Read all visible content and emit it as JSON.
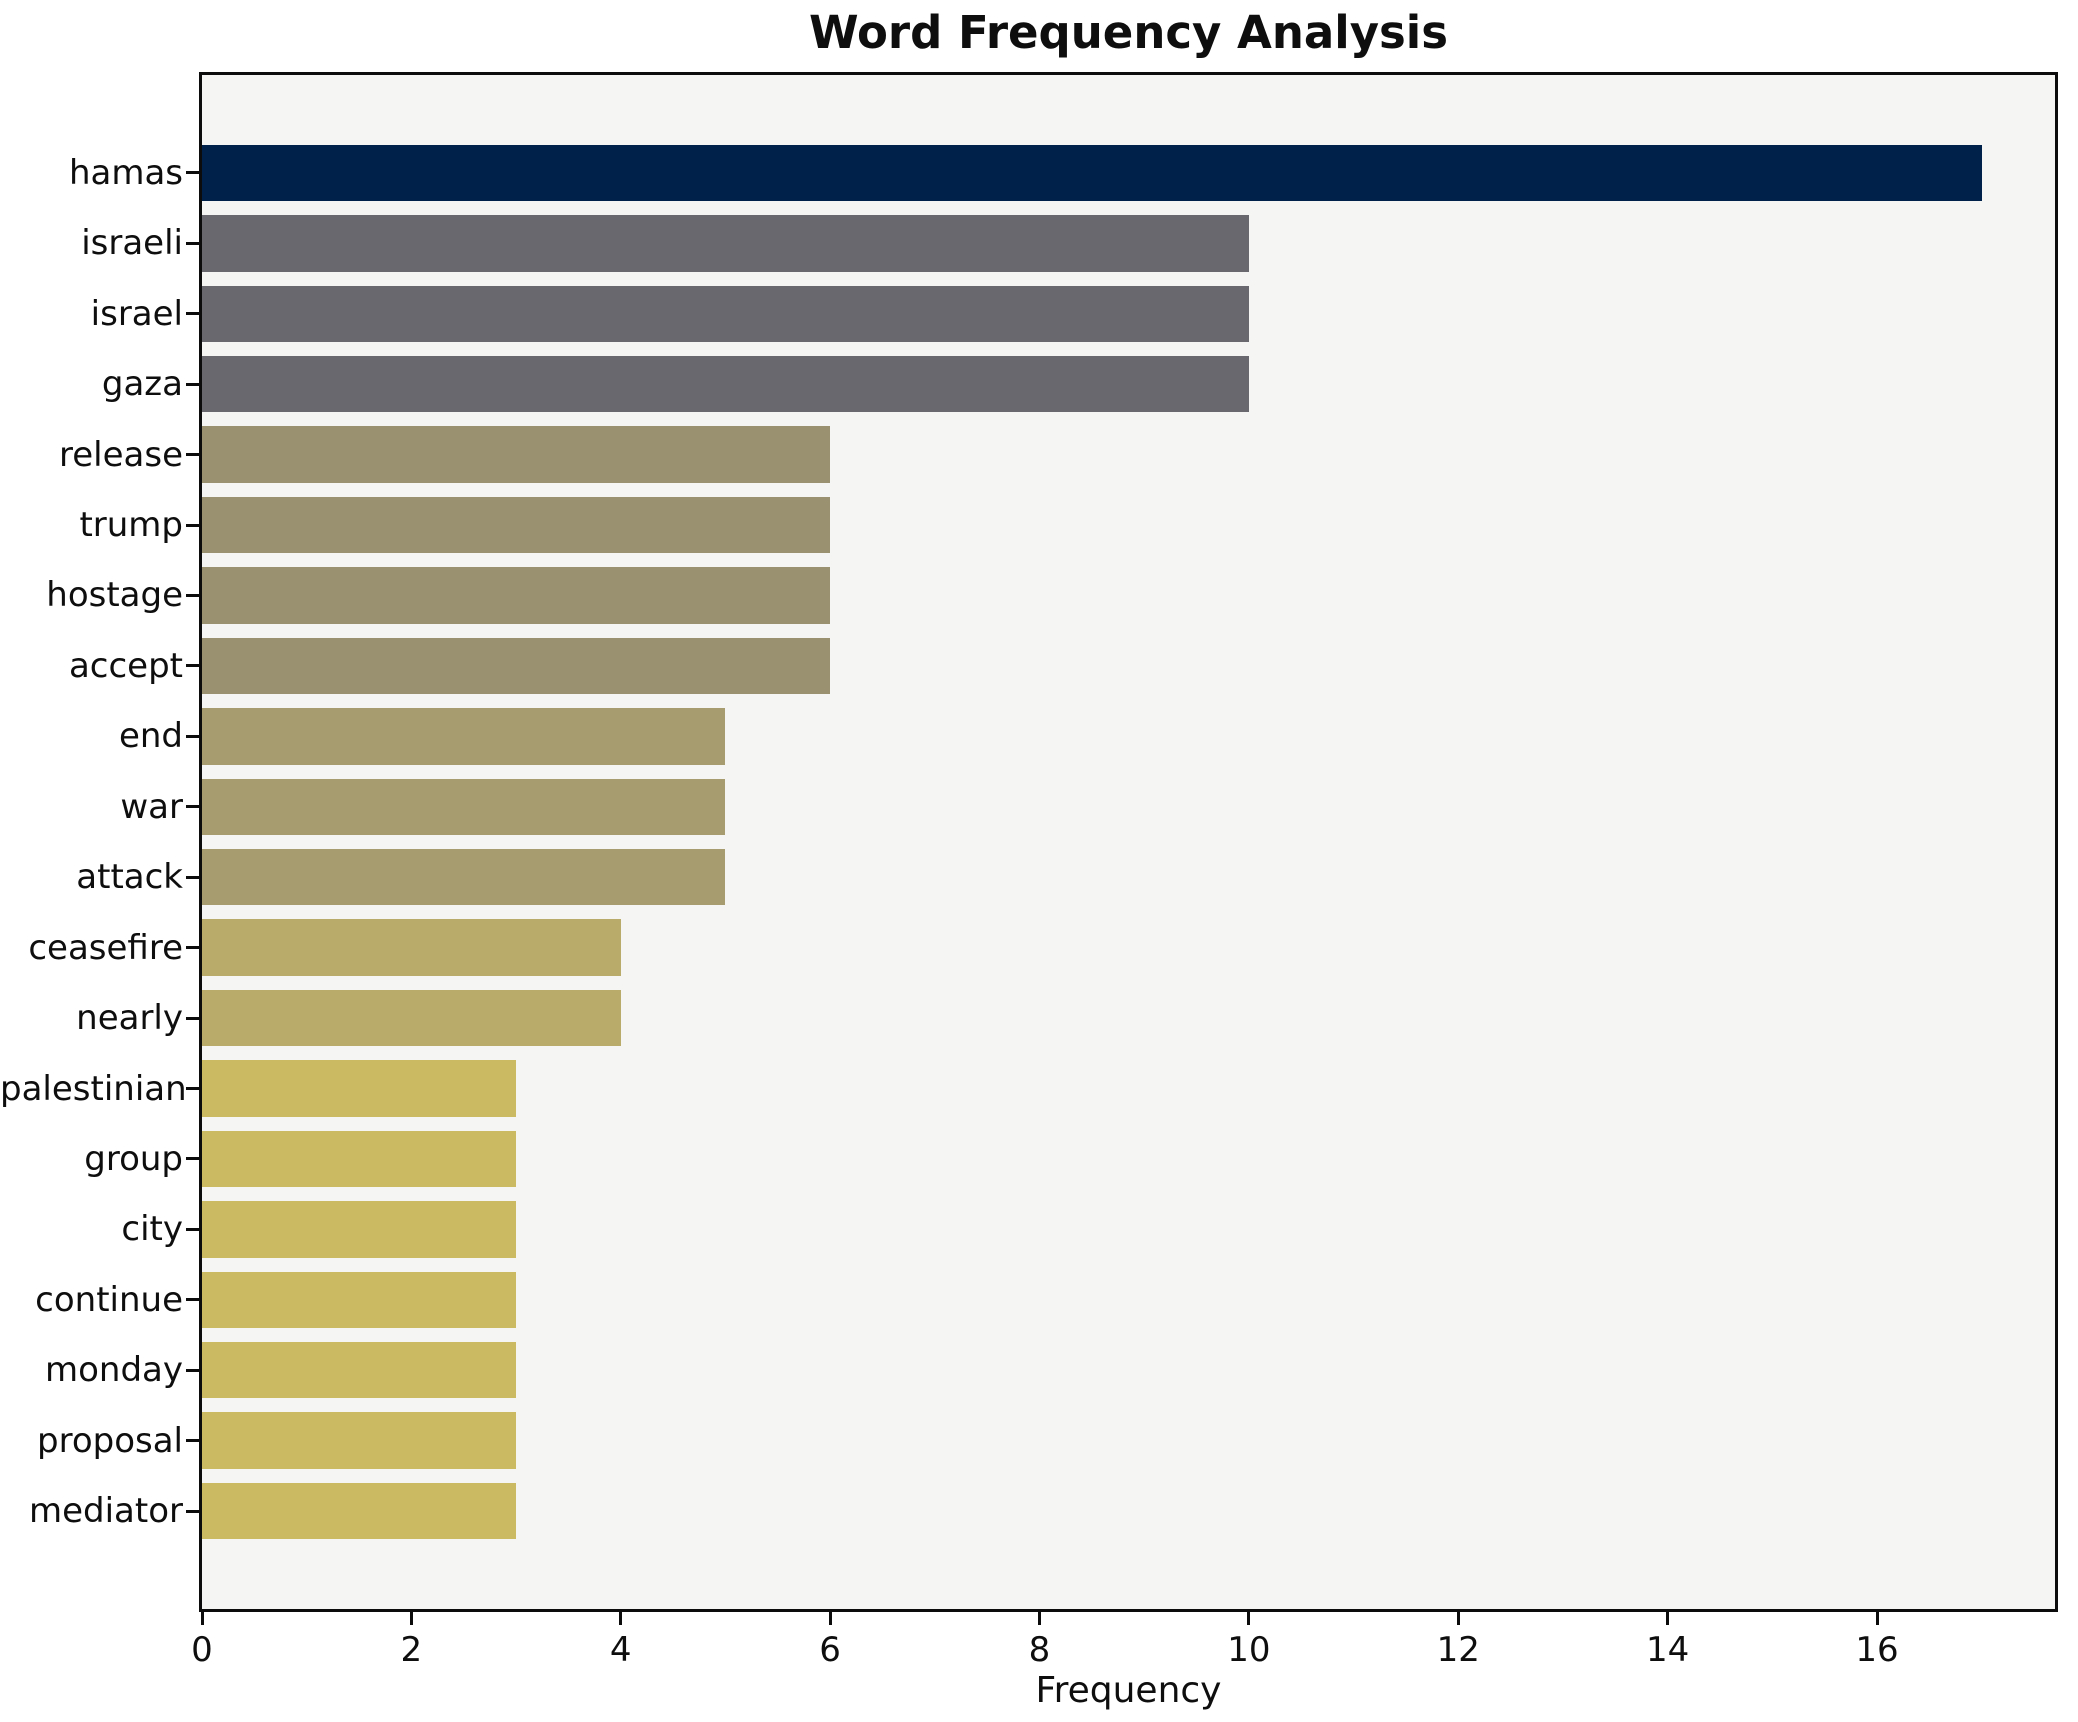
{
  "title": "Word Frequency Analysis",
  "chart_data": {
    "type": "bar",
    "orientation": "horizontal",
    "title": "Word Frequency Analysis",
    "xlabel": "Frequency",
    "ylabel": "",
    "categories": [
      "hamas",
      "israeli",
      "israel",
      "gaza",
      "release",
      "trump",
      "hostage",
      "accept",
      "end",
      "war",
      "attack",
      "ceasefire",
      "nearly",
      "palestinian",
      "group",
      "city",
      "continue",
      "monday",
      "proposal",
      "mediator"
    ],
    "values": [
      17,
      10,
      10,
      10,
      6,
      6,
      6,
      6,
      5,
      5,
      5,
      4,
      4,
      3,
      3,
      3,
      3,
      3,
      3,
      3
    ],
    "bar_colors": [
      "#00224a",
      "#68686e",
      "#68686e",
      "#68686e",
      "#999170",
      "#999170",
      "#999170",
      "#999170",
      "#a69c6f",
      "#a69c6f",
      "#a69c6f",
      "#b9ac6a",
      "#b9ac6a",
      "#ccba62",
      "#ccba62",
      "#ccba62",
      "#ccba62",
      "#ccba62",
      "#ccba62",
      "#ccba62"
    ],
    "xticks": [
      0,
      2,
      4,
      6,
      8,
      10,
      12,
      14,
      16
    ],
    "xlim": [
      0,
      17.7
    ],
    "grid": false,
    "legend_position": "none",
    "bar_relative_height": 0.8
  },
  "colors": {
    "plot_background": "#f5f5f3",
    "figure_background": "#ffffff",
    "spine": "#0c0c0c",
    "text": "#0e0e0e"
  }
}
